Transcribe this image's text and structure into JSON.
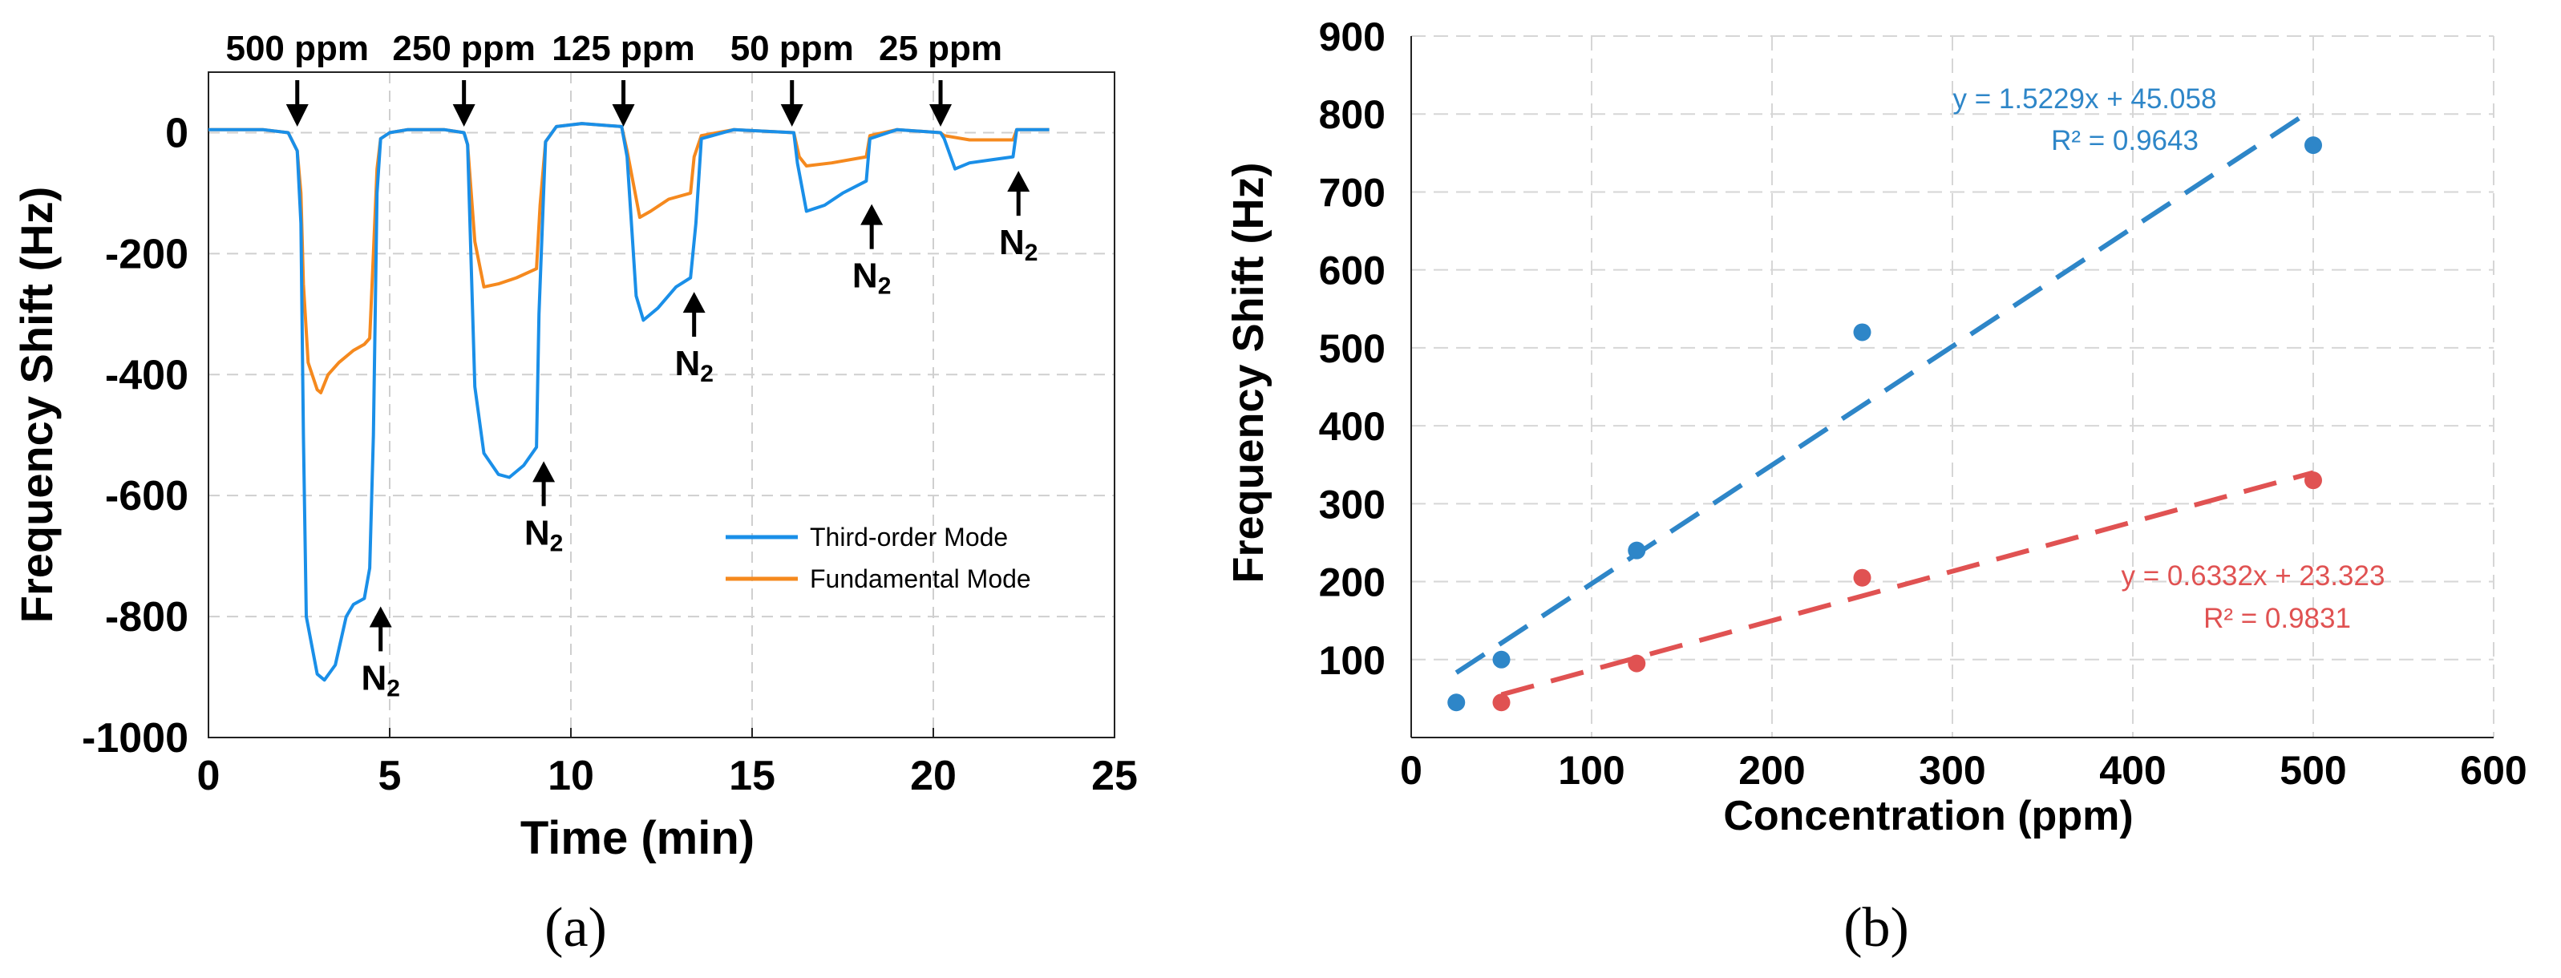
{
  "chart_data": [
    {
      "panel": "(a)",
      "type": "line",
      "title": "",
      "xlabel": "Time (min)",
      "ylabel": "Frequency Shift (Hz)",
      "xlim": [
        0,
        25
      ],
      "ylim": [
        -1000,
        100
      ],
      "xticks": [
        0,
        5,
        10,
        15,
        20,
        25
      ],
      "yticks": [
        0,
        -200,
        -400,
        -600,
        -800,
        -1000
      ],
      "grid": true,
      "legend_position": "bottom-right",
      "series": [
        {
          "name": "Third-order Mode",
          "color": "#1a8fe8",
          "x": [
            0,
            1.5,
            2.2,
            2.45,
            2.55,
            2.62,
            2.7,
            3.0,
            3.2,
            3.5,
            3.8,
            4.0,
            4.3,
            4.45,
            4.55,
            4.65,
            4.75,
            5.0,
            5.5,
            6.5,
            7.05,
            7.15,
            7.35,
            7.6,
            8.0,
            8.3,
            8.7,
            9.05,
            9.12,
            9.3,
            9.6,
            10.3,
            11.4,
            11.55,
            11.8,
            12.0,
            12.4,
            12.9,
            13.3,
            13.45,
            13.6,
            14.5,
            16.15,
            16.25,
            16.5,
            17.0,
            17.5,
            18.15,
            18.25,
            19.0,
            20.2,
            20.3,
            20.6,
            21.0,
            21.6,
            22.2,
            22.3,
            23.2
          ],
          "y": [
            5,
            5,
            0,
            -30,
            -150,
            -500,
            -800,
            -895,
            -905,
            -880,
            -800,
            -780,
            -770,
            -720,
            -500,
            -100,
            -10,
            0,
            5,
            5,
            0,
            -20,
            -420,
            -530,
            -565,
            -570,
            -550,
            -520,
            -300,
            -15,
            10,
            15,
            10,
            -40,
            -270,
            -310,
            -290,
            -255,
            -240,
            -150,
            -10,
            5,
            0,
            -50,
            -130,
            -120,
            -100,
            -80,
            -10,
            5,
            0,
            -10,
            -60,
            -50,
            -45,
            -40,
            5,
            5
          ]
        },
        {
          "name": "Fundamental Mode",
          "color": "#f5891e",
          "x": [
            0,
            1.5,
            2.2,
            2.45,
            2.55,
            2.62,
            2.75,
            3.0,
            3.1,
            3.3,
            3.6,
            4.0,
            4.3,
            4.45,
            4.55,
            4.65,
            4.75,
            5.0,
            5.5,
            6.5,
            7.05,
            7.15,
            7.35,
            7.6,
            8.0,
            8.5,
            9.05,
            9.15,
            9.3,
            9.6,
            10.3,
            11.4,
            11.55,
            11.9,
            12.2,
            12.7,
            13.3,
            13.4,
            13.6,
            14.5,
            16.15,
            16.3,
            16.5,
            17.2,
            18.15,
            18.25,
            19.0,
            20.2,
            20.3,
            21.0,
            22.2,
            22.3,
            23.2
          ],
          "y": [
            5,
            5,
            0,
            -30,
            -100,
            -250,
            -380,
            -425,
            -430,
            -400,
            -380,
            -360,
            -350,
            -340,
            -200,
            -60,
            -10,
            0,
            5,
            5,
            0,
            -20,
            -180,
            -255,
            -250,
            -240,
            -225,
            -120,
            -15,
            10,
            15,
            10,
            -30,
            -140,
            -130,
            -110,
            -100,
            -40,
            -5,
            5,
            0,
            -40,
            -55,
            -50,
            -40,
            -5,
            5,
            0,
            -5,
            -12,
            -12,
            5,
            5
          ]
        }
      ],
      "annotations": {
        "injections": [
          {
            "label": "500 ppm",
            "x": 2.45
          },
          {
            "label": "250 ppm",
            "x": 7.05
          },
          {
            "label": "125 ppm",
            "x": 11.45
          },
          {
            "label": "50 ppm",
            "x": 16.1
          },
          {
            "label": "25 ppm",
            "x": 20.2
          }
        ],
        "purges": [
          {
            "label": "N",
            "sub": "2",
            "x": 4.75,
            "y": -770
          },
          {
            "label": "N",
            "sub": "2",
            "x": 9.25,
            "y": -530
          },
          {
            "label": "N",
            "sub": "2",
            "x": 13.4,
            "y": -250
          },
          {
            "label": "N",
            "sub": "2",
            "x": 18.3,
            "y": -105
          },
          {
            "label": "N",
            "sub": "2",
            "x": 22.35,
            "y": -50
          }
        ]
      }
    },
    {
      "panel": "(b)",
      "type": "scatter",
      "title": "",
      "xlabel": "Concentration (ppm)",
      "ylabel": "Frequency Shift (Hz)",
      "xlim": [
        0,
        600
      ],
      "ylim": [
        0,
        900
      ],
      "xticks": [
        0,
        100,
        200,
        300,
        400,
        500,
        600
      ],
      "yticks": [
        100,
        200,
        300,
        400,
        500,
        600,
        700,
        800,
        900
      ],
      "grid": true,
      "series": [
        {
          "name": "Third-order Mode",
          "color": "#2e86c8",
          "x": [
            25,
            50,
            125,
            250,
            500
          ],
          "y": [
            45,
            100,
            240,
            520,
            760
          ],
          "fit": {
            "slope": 1.5229,
            "intercept": 45.058,
            "x_range": [
              25,
              500
            ],
            "equation": "y = 1.5229x + 45.058",
            "r2": "R² = 0.9643"
          }
        },
        {
          "name": "Fundamental Mode",
          "color": "#e05252",
          "x": [
            50,
            125,
            250,
            500
          ],
          "y": [
            45,
            95,
            205,
            330
          ],
          "fit": {
            "slope": 0.6332,
            "intercept": 23.323,
            "x_range": [
              50,
              500
            ],
            "equation": "y = 0.6332x + 23.323",
            "r2": "R² = 0.9831"
          }
        }
      ]
    }
  ]
}
